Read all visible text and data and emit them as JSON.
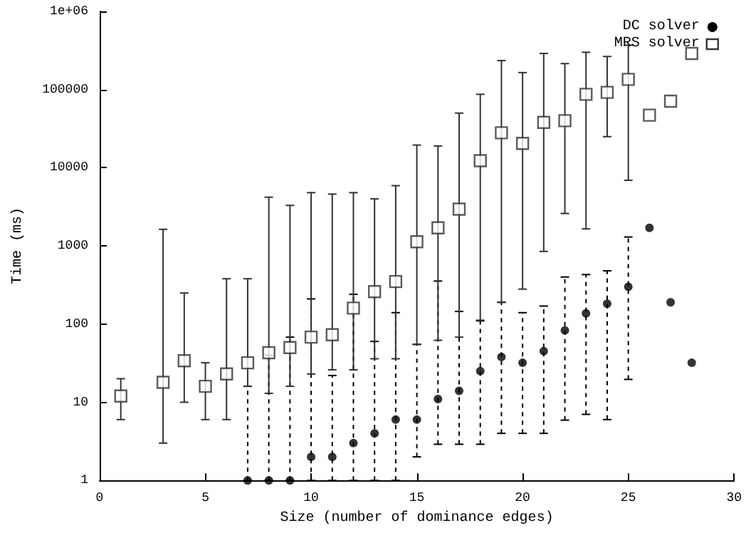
{
  "chart_data": {
    "type": "scatter",
    "xlabel": "Size (number of dominance edges)",
    "ylabel": "Time (ms)",
    "log": "y",
    "grid": false,
    "legend": "top right",
    "xlim": [
      0,
      30
    ],
    "xticks": [
      0,
      5,
      10,
      15,
      20,
      25,
      30
    ],
    "ylim": [
      1,
      1000000
    ],
    "yticks": [
      1,
      10,
      100,
      1000,
      10000,
      100000,
      {
        "value": 1000000,
        "label": "1e+06"
      }
    ],
    "series": [
      {
        "name": "DC solver",
        "color": "#000000",
        "marker": "circle",
        "line_style": "dashed",
        "x": [
          7,
          8,
          9,
          10,
          11,
          12,
          13,
          14,
          15,
          16,
          17,
          18,
          19,
          20,
          21,
          22,
          23,
          24,
          25,
          26,
          27,
          28
        ],
        "values": [
          1,
          1,
          1,
          2,
          2,
          3,
          4,
          6,
          6,
          11,
          14,
          25,
          38,
          32,
          45,
          83,
          137,
          182,
          300,
          1700,
          190,
          32
        ],
        "errors": [
          [
            1,
            16
          ],
          [
            1,
            40
          ],
          [
            1,
            68
          ],
          [
            1,
            210
          ],
          [
            1,
            22
          ],
          [
            1,
            240
          ],
          [
            1,
            60
          ],
          [
            1,
            140
          ],
          [
            2,
            55
          ],
          [
            2.9,
            355
          ],
          [
            2.9,
            145
          ],
          [
            2.9,
            110
          ],
          [
            4,
            190
          ],
          [
            4,
            140
          ],
          [
            4,
            170
          ],
          [
            5.9,
            400
          ],
          [
            7,
            430
          ],
          [
            6,
            480
          ],
          [
            19.6,
            1300
          ],
          null,
          null,
          null
        ]
      },
      {
        "name": "MRS solver",
        "color": "#333333",
        "marker": "square",
        "line_style": "solid",
        "x": [
          1,
          3,
          4,
          5,
          6,
          7,
          8,
          9,
          10,
          11,
          12,
          13,
          14,
          15,
          16,
          17,
          18,
          19,
          20,
          21,
          22,
          23,
          24,
          25,
          26,
          27,
          28
        ],
        "values": [
          12,
          18,
          34,
          16,
          23,
          32,
          43,
          50,
          68,
          73,
          160,
          260,
          350,
          1130,
          1700,
          2950,
          12300,
          28000,
          20500,
          38000,
          40000,
          87000,
          92000,
          135000,
          47000,
          71000,
          290000
        ],
        "errors": [
          [
            6,
            20
          ],
          [
            3,
            1630
          ],
          [
            10,
            250
          ],
          [
            6,
            32
          ],
          [
            6,
            380
          ],
          [
            16,
            380
          ],
          [
            13,
            4200
          ],
          [
            16,
            3300
          ],
          [
            23,
            4800
          ],
          [
            26,
            4600
          ],
          [
            26,
            4800
          ],
          [
            36,
            4000
          ],
          [
            36,
            5900
          ],
          [
            55,
            19500
          ],
          [
            62,
            19000
          ],
          [
            68,
            50000
          ],
          [
            112,
            87000
          ],
          [
            190,
            235000
          ],
          [
            280,
            165000
          ],
          [
            850,
            290000
          ],
          [
            2600,
            215000
          ],
          [
            1650,
            300000
          ],
          [
            25000,
            265000
          ],
          [
            6900,
            370000
          ],
          null,
          null,
          null
        ]
      }
    ]
  }
}
